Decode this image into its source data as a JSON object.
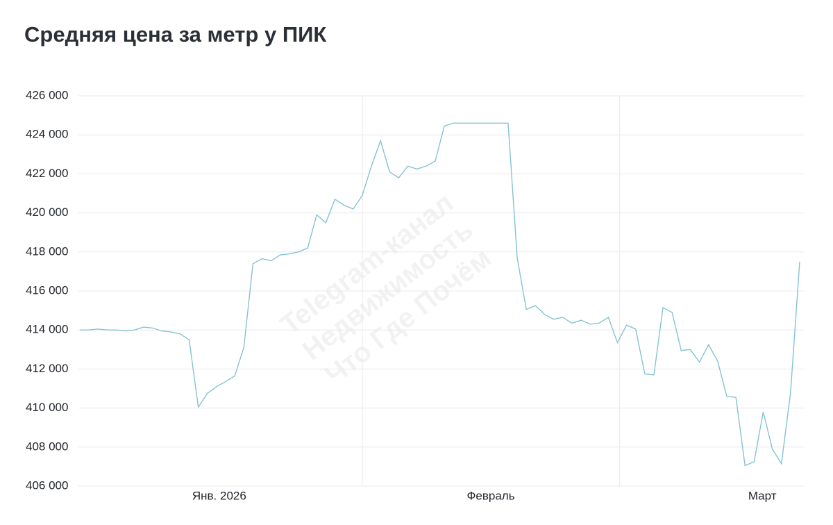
{
  "chart_data": {
    "type": "line",
    "title": "Средняя цена за метр у ПИК",
    "watermark": [
      "Telegram-канал",
      "Недвижимость",
      "Что Где Почём"
    ],
    "x": [
      0,
      1,
      2,
      3,
      4,
      5,
      6,
      7,
      8,
      9,
      10,
      11,
      12,
      13,
      14,
      15,
      16,
      17,
      18,
      19,
      20,
      21,
      22,
      23,
      24,
      25,
      26,
      27,
      28,
      29,
      30,
      31,
      32,
      33,
      34,
      35,
      36,
      37,
      38,
      39,
      40,
      41,
      42,
      43,
      44,
      45,
      46,
      47,
      48,
      49,
      50,
      51,
      52,
      53,
      54,
      55,
      56,
      57,
      58,
      59,
      60,
      61,
      62,
      63,
      64,
      65,
      66,
      67,
      68,
      69,
      70,
      71,
      72,
      73,
      74,
      75,
      76,
      77,
      78,
      79
    ],
    "series": [
      {
        "name": "Средняя цена за метр",
        "color": "#86c2d4",
        "values": [
          414000,
          414000,
          414050,
          414000,
          414000,
          413950,
          414000,
          414150,
          414100,
          413950,
          413900,
          413800,
          413500,
          410050,
          410750,
          411100,
          411350,
          411650,
          413100,
          417400,
          417650,
          417550,
          417850,
          417900,
          418000,
          418200,
          419900,
          419500,
          420700,
          420400,
          420200,
          420900,
          422400,
          423700,
          422100,
          421800,
          422400,
          422250,
          422400,
          422650,
          424450,
          424600,
          424600,
          424600,
          424600,
          424600,
          424600,
          424600,
          417700,
          415050,
          415250,
          414800,
          414550,
          414650,
          414350,
          414500,
          414300,
          414350,
          414650,
          413350,
          414250,
          414050,
          411750,
          411700,
          415150,
          414900,
          412950,
          413000,
          412350,
          413250,
          412400,
          410600,
          410550,
          407050,
          407250,
          409800,
          407900,
          407150,
          410800,
          417500
        ]
      }
    ],
    "xlim": [
      0,
      79
    ],
    "xticks": [
      {
        "value": 15.3,
        "label": "Янв. 2026"
      },
      {
        "value": 45.1,
        "label": "Февраль"
      },
      {
        "value": 74.9,
        "label": "Март"
      }
    ],
    "xgrid": [
      31,
      59.25
    ],
    "ylim": [
      406000,
      426000
    ],
    "yticks": [
      {
        "value": 406000,
        "label": "406 000"
      },
      {
        "value": 408000,
        "label": "408 000"
      },
      {
        "value": 410000,
        "label": "410 000"
      },
      {
        "value": 412000,
        "label": "412 000"
      },
      {
        "value": 414000,
        "label": "414 000"
      },
      {
        "value": 416000,
        "label": "416 000"
      },
      {
        "value": 418000,
        "label": "418 000"
      },
      {
        "value": 420000,
        "label": "420 000"
      },
      {
        "value": 422000,
        "label": "422 000"
      },
      {
        "value": 424000,
        "label": "424 000"
      },
      {
        "value": 426000,
        "label": "426 000"
      }
    ],
    "grid": true
  }
}
